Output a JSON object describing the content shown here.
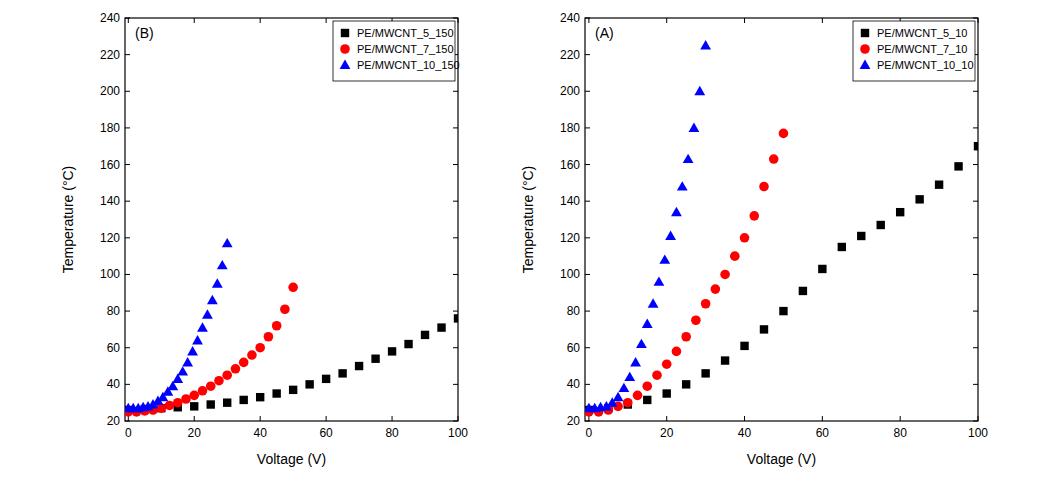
{
  "chart_data": [
    {
      "type": "scatter",
      "annotation": "(B)",
      "x_label": "Voltage (V)",
      "y_label": "Temperature (°C)",
      "xlim": [
        -1,
        100
      ],
      "ylim": [
        20,
        240
      ],
      "xticks": [
        0,
        20,
        40,
        60,
        80,
        100
      ],
      "yticks": [
        20,
        40,
        60,
        80,
        100,
        120,
        140,
        160,
        180,
        200,
        220,
        240
      ],
      "legend": "top-right",
      "grid": false,
      "series": [
        {
          "name": "PE/MWCNT_5_150",
          "color": "#000000",
          "marker": "square",
          "x": [
            0,
            5,
            10,
            15,
            20,
            25,
            30,
            35,
            40,
            45,
            50,
            55,
            60,
            65,
            70,
            75,
            80,
            85,
            90,
            95,
            100
          ],
          "values": [
            26,
            26.5,
            27,
            27.5,
            28,
            29,
            30,
            31.5,
            33,
            35,
            37,
            40,
            43,
            46,
            50,
            54,
            58,
            62,
            67,
            71,
            76
          ]
        },
        {
          "name": "PE/MWCNT_7_150",
          "color": "#ff0000",
          "marker": "circle",
          "x": [
            0,
            2.5,
            5,
            7.5,
            10,
            12.5,
            15,
            17.5,
            20,
            22.5,
            25,
            27.5,
            30,
            32.5,
            35,
            37.5,
            40,
            42.5,
            45,
            47.5,
            50
          ],
          "values": [
            25,
            25,
            25.5,
            26,
            27,
            28.5,
            30,
            32,
            34,
            36.5,
            39,
            42,
            45,
            48.5,
            52,
            56,
            60,
            66,
            72,
            81,
            93
          ]
        },
        {
          "name": "PE/MWCNT_10_150",
          "color": "#0000ff",
          "marker": "triangle",
          "x": [
            0,
            1.5,
            3,
            4.5,
            6,
            7.5,
            9,
            10.5,
            12,
            13.5,
            15,
            16.5,
            18,
            19.5,
            21,
            22.5,
            24,
            25.5,
            27,
            28.5,
            30
          ],
          "values": [
            27,
            27,
            27,
            27.5,
            28,
            29,
            31,
            33,
            36,
            39,
            43,
            47,
            52,
            58,
            64,
            71,
            78,
            86,
            95,
            105,
            117
          ]
        }
      ]
    },
    {
      "type": "scatter",
      "annotation": "(A)",
      "x_label": "Voltage (V)",
      "y_label": "Temperature (°C)",
      "xlim": [
        -1,
        100
      ],
      "ylim": [
        20,
        240
      ],
      "xticks": [
        0,
        20,
        40,
        60,
        80,
        100
      ],
      "yticks": [
        20,
        40,
        60,
        80,
        100,
        120,
        140,
        160,
        180,
        200,
        220,
        240
      ],
      "legend": "top-right",
      "grid": false,
      "series": [
        {
          "name": "PE/MWCNT_5_10",
          "color": "#000000",
          "marker": "square",
          "x": [
            0,
            5,
            10,
            15,
            20,
            25,
            30,
            35,
            40,
            45,
            50,
            55,
            60,
            65,
            70,
            75,
            80,
            85,
            90,
            95,
            100
          ],
          "values": [
            26,
            27,
            29,
            31.5,
            35,
            40,
            46,
            53,
            61,
            70,
            80,
            91,
            103,
            115,
            121,
            127,
            134,
            141,
            149,
            159,
            170
          ]
        },
        {
          "name": "PE/MWCNT_7_10",
          "color": "#ff0000",
          "marker": "circle",
          "x": [
            0,
            2.5,
            5,
            7.5,
            10,
            12.5,
            15,
            17.5,
            20,
            22.5,
            25,
            27.5,
            30,
            32.5,
            35,
            37.5,
            40,
            42.5,
            45,
            47.5,
            50
          ],
          "values": [
            25,
            25,
            26,
            28,
            30,
            34,
            39,
            45,
            51,
            58,
            66,
            75,
            84,
            92,
            100,
            110,
            120,
            132,
            148,
            163,
            177
          ]
        },
        {
          "name": "PE/MWCNT_10_10",
          "color": "#0000ff",
          "marker": "triangle",
          "x": [
            0,
            1.5,
            3,
            4.5,
            6,
            7.5,
            9,
            10.5,
            12,
            13.5,
            15,
            16.5,
            18,
            19.5,
            21,
            22.5,
            24,
            25.5,
            27,
            28.5,
            30
          ],
          "values": [
            27,
            27,
            27.5,
            28,
            30,
            33,
            38,
            44,
            52,
            62,
            73,
            84,
            96,
            108,
            121,
            134,
            148,
            163,
            180,
            200,
            225
          ]
        }
      ]
    }
  ]
}
